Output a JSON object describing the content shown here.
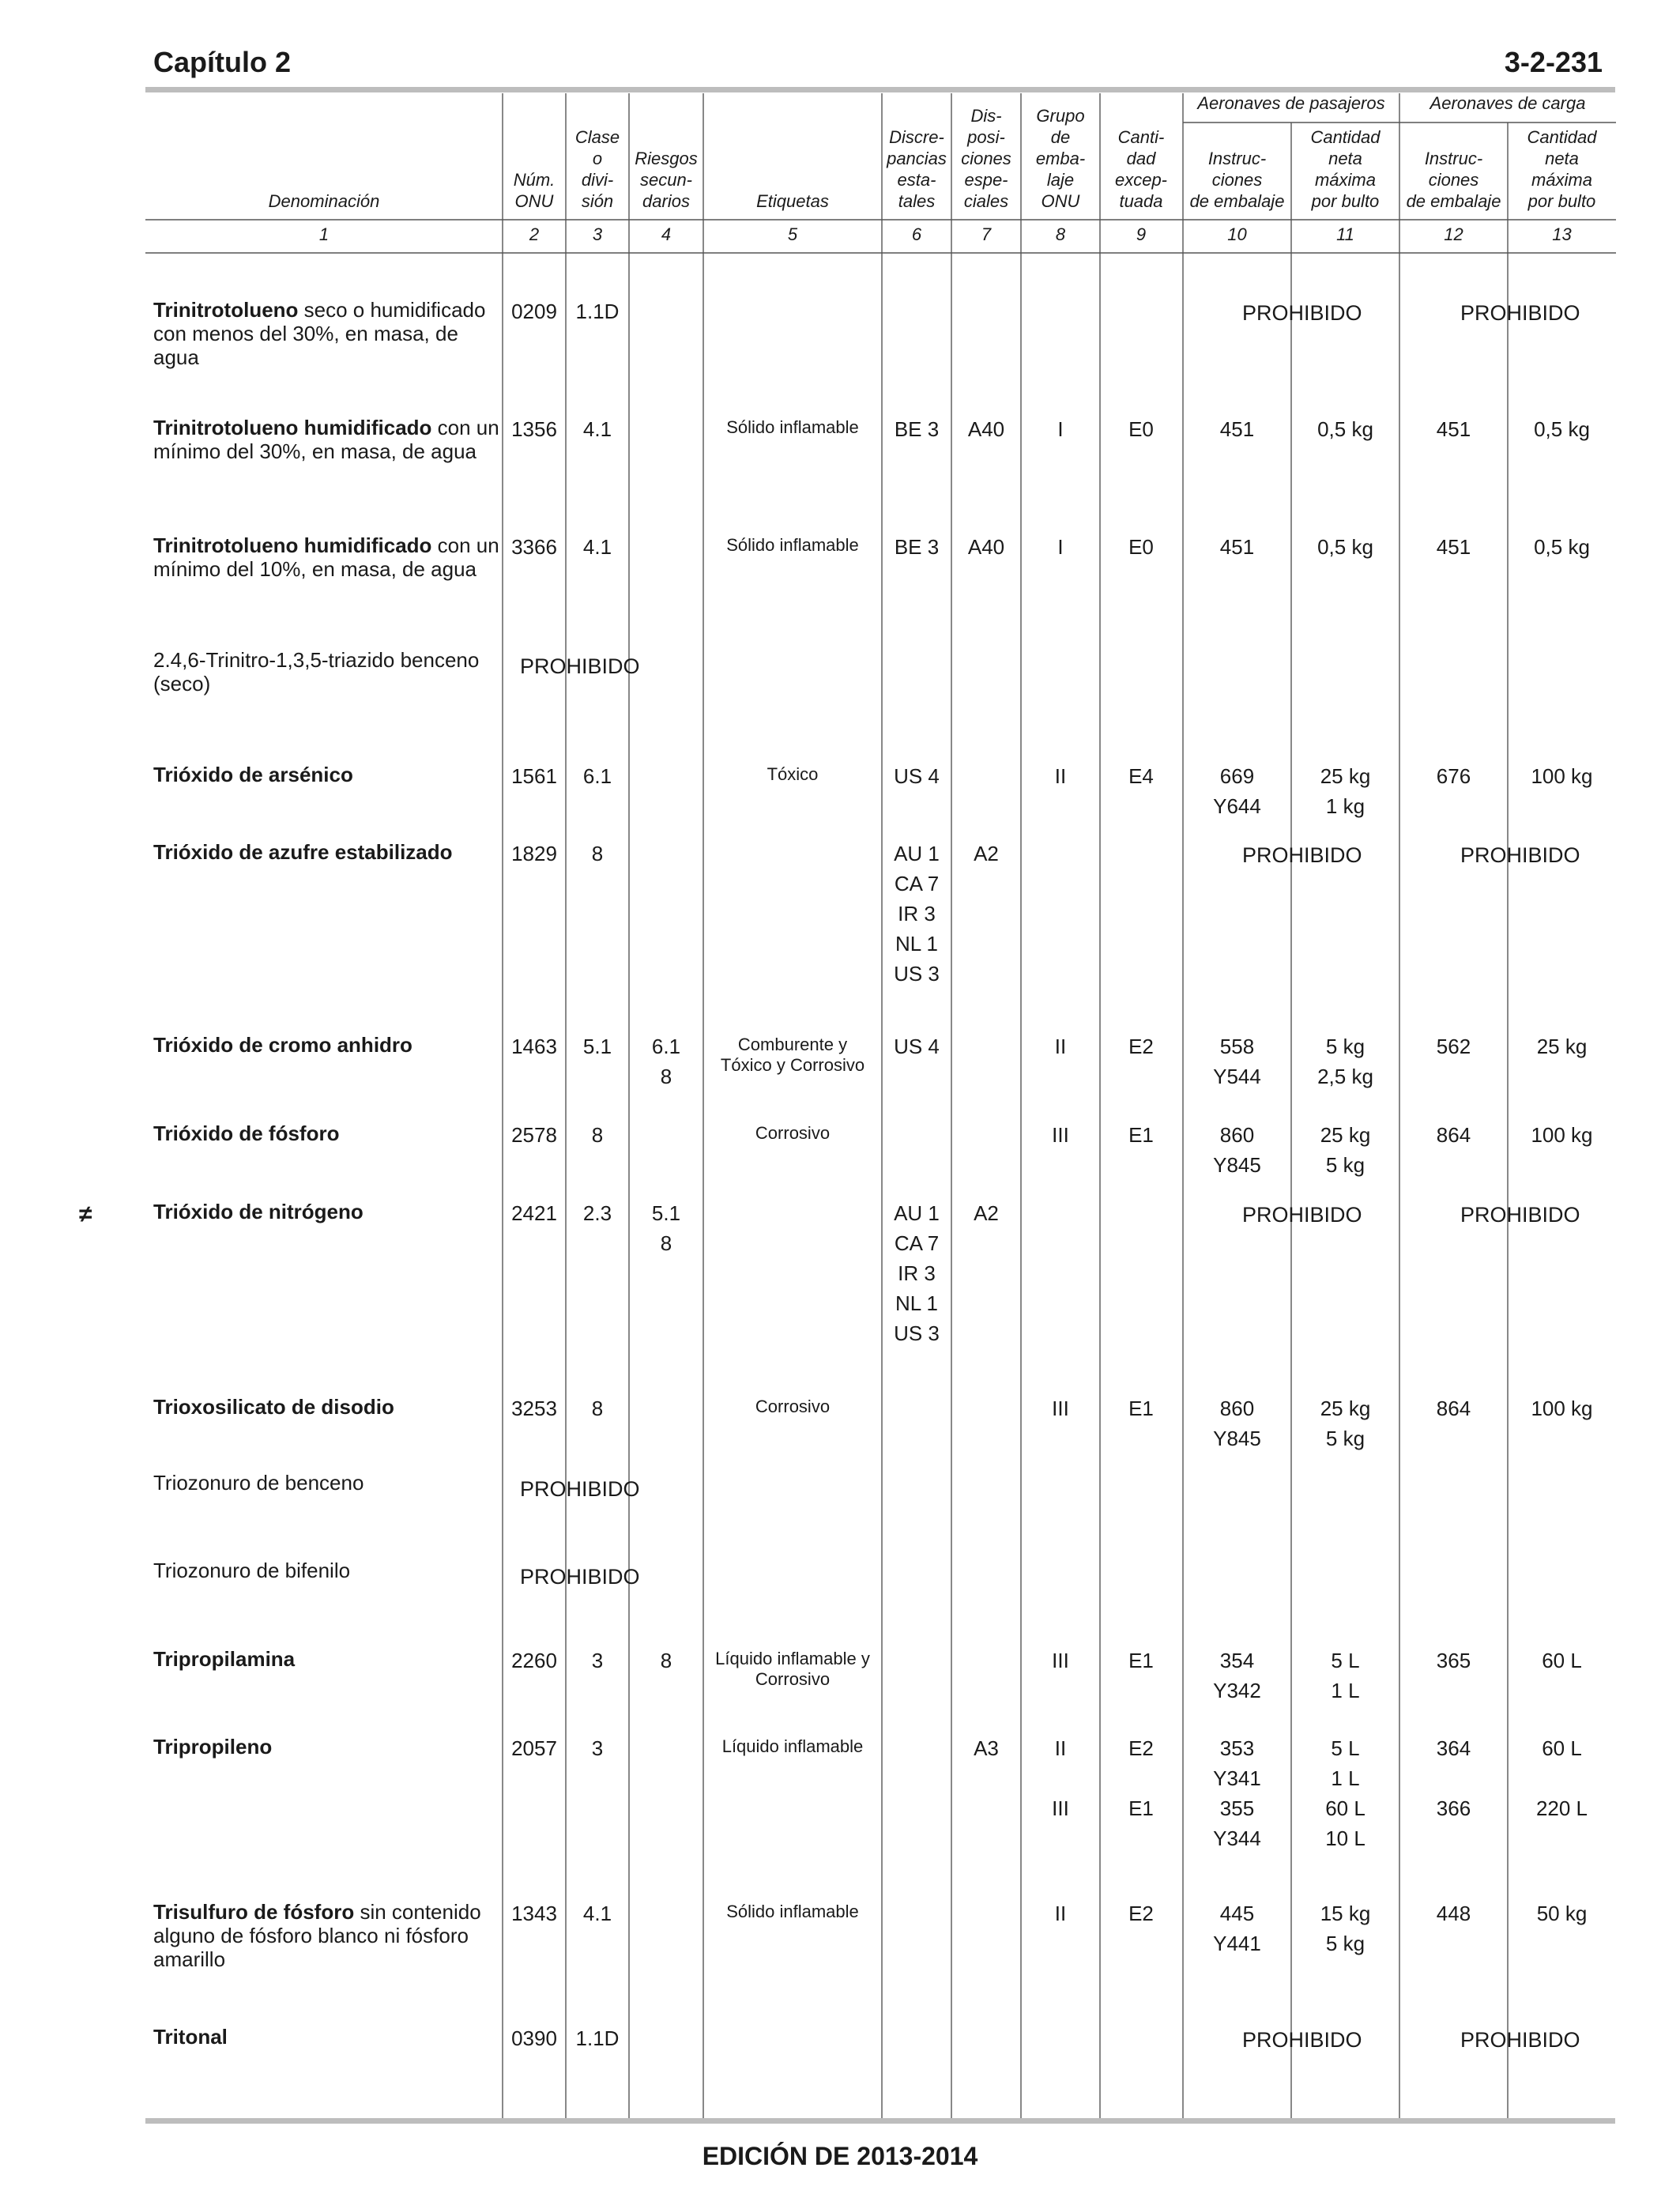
{
  "header": {
    "chapter": "Capítulo 2",
    "page": "3-2-231"
  },
  "footer": "EDICIÓN DE 2013-2014",
  "margin_mark": "≠",
  "table": {
    "group_headers": {
      "passenger": "Aeronaves de pasajeros",
      "cargo": "Aeronaves de carga"
    },
    "headers": {
      "denominacion": "Denominación",
      "onu": "Núm.\nONU",
      "clase": "Clase\no\ndivi-\nsión",
      "riesgos": "Riesgos\nsecun-\ndarios",
      "etiquetas": "Etiquetas",
      "discrepancias": "Discre-\npancias\nesta-\ntales",
      "disposiciones": "Dis-\nposi-\nciones\nespe-\nciales",
      "grupo": "Grupo\nde\nemba-\nlaje\nONU",
      "cantidad_exceptuada": "Canti-\ndad\nexcep-\ntuada",
      "pax_instr": "Instruc-\nciones\nde embalaje",
      "pax_qty": "Cantidad\nneta\nmáxima\npor bulto",
      "cargo_instr": "Instruc-\nciones\nde embalaje",
      "cargo_qty": "Cantidad\nneta\nmáxima\npor bulto"
    },
    "column_numbers": [
      "1",
      "2",
      "3",
      "4",
      "5",
      "6",
      "7",
      "8",
      "9",
      "10",
      "11",
      "12",
      "13"
    ],
    "rows": [
      {
        "name_bold": "Trinitrotolueno",
        "name_rest": " seco o humidificado con menos del 30%, en masa, de agua",
        "onu": "0209",
        "clase": "1.1D",
        "riesgos": "",
        "etiquetas": "",
        "discrepancias": "",
        "disposiciones": "",
        "grupo": "",
        "exceptuada": "",
        "pax_instr": "",
        "pax_qty": "",
        "cargo_instr": "",
        "cargo_qty": "",
        "prohibido_aircraft": "PROHIBIDO"
      },
      {
        "name_bold": "Trinitrotolueno humidificado",
        "name_rest": " con un mínimo del 30%, en masa, de agua",
        "onu": "1356",
        "clase": "4.1",
        "riesgos": "",
        "etiquetas": "Sólido inflamable",
        "discrepancias": "BE 3",
        "disposiciones": "A40",
        "grupo": "I",
        "exceptuada": "E0",
        "pax_instr": "451",
        "pax_qty": "0,5 kg",
        "cargo_instr": "451",
        "cargo_qty": "0,5 kg"
      },
      {
        "name_bold": "Trinitrotolueno humidificado",
        "name_rest": " con un mínimo del 10%, en masa, de agua",
        "onu": "3366",
        "clase": "4.1",
        "riesgos": "",
        "etiquetas": "Sólido inflamable",
        "discrepancias": "BE 3",
        "disposiciones": "A40",
        "grupo": "I",
        "exceptuada": "E0",
        "pax_instr": "451",
        "pax_qty": "0,5 kg",
        "cargo_instr": "451",
        "cargo_qty": "0,5 kg"
      },
      {
        "name_bold": "",
        "name_rest": "2.4,6-Trinitro-1,3,5-triazido benceno (seco)",
        "prohibido_onu": "PROHIBIDO"
      },
      {
        "name_bold": "Trióxido de arsénico",
        "name_rest": "",
        "onu": "1561",
        "clase": "6.1",
        "riesgos": "",
        "etiquetas": "Tóxico",
        "discrepancias": "US 4",
        "disposiciones": "",
        "grupo": "II",
        "exceptuada": "E4",
        "pax_instr": "669\nY644",
        "pax_qty": "25 kg\n1 kg",
        "cargo_instr": "676",
        "cargo_qty": "100 kg"
      },
      {
        "name_bold": "Trióxido de azufre estabilizado",
        "name_rest": "",
        "onu": "1829",
        "clase": "8",
        "riesgos": "",
        "etiquetas": "",
        "discrepancias": "AU 1\nCA 7\nIR 3\nNL 1\nUS 3",
        "disposiciones": "A2",
        "grupo": "",
        "exceptuada": "",
        "pax_instr": "",
        "pax_qty": "",
        "cargo_instr": "",
        "cargo_qty": "",
        "prohibido_aircraft": "PROHIBIDO"
      },
      {
        "name_bold": "Trióxido de cromo anhidro",
        "name_rest": "",
        "onu": "1463",
        "clase": "5.1",
        "riesgos": "6.1\n8",
        "etiquetas": "Comburente y\nTóxico y Corrosivo",
        "discrepancias": "US 4",
        "disposiciones": "",
        "grupo": "II",
        "exceptuada": "E2",
        "pax_instr": "558\nY544",
        "pax_qty": "5 kg\n2,5 kg",
        "cargo_instr": "562",
        "cargo_qty": "25 kg"
      },
      {
        "name_bold": "Trióxido de fósforo",
        "name_rest": "",
        "onu": "2578",
        "clase": "8",
        "riesgos": "",
        "etiquetas": "Corrosivo",
        "discrepancias": "",
        "disposiciones": "",
        "grupo": "III",
        "exceptuada": "E1",
        "pax_instr": "860\nY845",
        "pax_qty": "25 kg\n5 kg",
        "cargo_instr": "864",
        "cargo_qty": "100 kg"
      },
      {
        "name_bold": "Trióxido de nitrógeno",
        "name_rest": "",
        "onu": "2421",
        "clase": "2.3",
        "riesgos": "5.1\n8",
        "etiquetas": "",
        "discrepancias": "AU 1\nCA 7\nIR 3\nNL 1\nUS 3",
        "disposiciones": "A2",
        "grupo": "",
        "exceptuada": "",
        "pax_instr": "",
        "pax_qty": "",
        "cargo_instr": "",
        "cargo_qty": "",
        "prohibido_aircraft": "PROHIBIDO"
      },
      {
        "name_bold": "Trioxosilicato de disodio",
        "name_rest": "",
        "onu": "3253",
        "clase": "8",
        "riesgos": "",
        "etiquetas": "Corrosivo",
        "discrepancias": "",
        "disposiciones": "",
        "grupo": "III",
        "exceptuada": "E1",
        "pax_instr": "860\nY845",
        "pax_qty": "25 kg\n5 kg",
        "cargo_instr": "864",
        "cargo_qty": "100 kg"
      },
      {
        "name_bold": "",
        "name_rest": "Triozonuro de benceno",
        "prohibido_onu": "PROHIBIDO"
      },
      {
        "name_bold": "",
        "name_rest": "Triozonuro de bifenilo",
        "prohibido_onu": "PROHIBIDO"
      },
      {
        "name_bold": "Tripropilamina",
        "name_rest": "",
        "onu": "2260",
        "clase": "3",
        "riesgos": "8",
        "etiquetas": "Líquido inflamable y\nCorrosivo",
        "discrepancias": "",
        "disposiciones": "",
        "grupo": "III",
        "exceptuada": "E1",
        "pax_instr": "354\nY342",
        "pax_qty": "5 L\n1 L",
        "cargo_instr": "365",
        "cargo_qty": "60 L"
      },
      {
        "name_bold": "Tripropileno",
        "name_rest": "",
        "onu": "2057",
        "clase": "3",
        "riesgos": "",
        "etiquetas": "Líquido inflamable",
        "discrepancias": "",
        "disposiciones": "A3",
        "grupo": "II\n\nIII",
        "exceptuada": "E2\n\nE1",
        "pax_instr": "353\nY341\n355\nY344",
        "pax_qty": "5 L\n1 L\n60 L\n10 L",
        "cargo_instr": "364\n\n366",
        "cargo_qty": "60 L\n\n220 L"
      },
      {
        "name_bold": "Trisulfuro de fósforo",
        "name_rest": " sin contenido alguno de fósforo blanco ni fósforo amarillo",
        "onu": "1343",
        "clase": "4.1",
        "riesgos": "",
        "etiquetas": "Sólido inflamable",
        "discrepancias": "",
        "disposiciones": "",
        "grupo": "II",
        "exceptuada": "E2",
        "pax_instr": "445\nY441",
        "pax_qty": "15 kg\n5 kg",
        "cargo_instr": "448",
        "cargo_qty": "50 kg"
      },
      {
        "name_bold": "Tritonal",
        "name_rest": "",
        "onu": "0390",
        "clase": "1.1D",
        "riesgos": "",
        "etiquetas": "",
        "discrepancias": "",
        "disposiciones": "",
        "grupo": "",
        "exceptuada": "",
        "pax_instr": "",
        "pax_qty": "",
        "cargo_instr": "",
        "cargo_qty": "",
        "prohibido_aircraft": "PROHIBIDO"
      }
    ]
  }
}
